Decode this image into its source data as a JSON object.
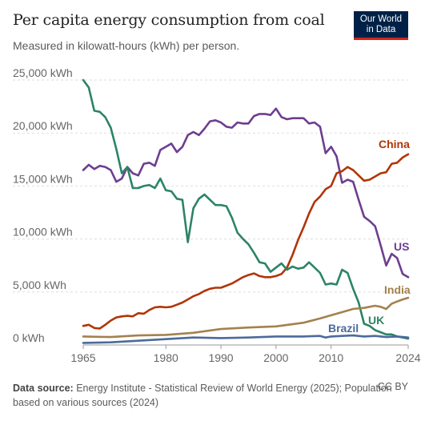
{
  "header": {
    "title": "Per capita energy consumption from coal",
    "subtitle": "Measured in kilowatt-hours (kWh) per person.",
    "logo_line1": "Our World",
    "logo_line2": "in Data"
  },
  "footer": {
    "source_label": "Data source:",
    "source_text": "Energy Institute - Statistical Review of World Energy (2025); Population based on various sources (2024)",
    "license": "CC BY"
  },
  "chart_data": {
    "type": "line",
    "xlim": [
      1965,
      2024
    ],
    "ylim": [
      0,
      25000
    ],
    "x_ticks": [
      1965,
      1980,
      1990,
      2000,
      2010,
      2024
    ],
    "x_tick_labels": [
      "1965",
      "1980",
      "1990",
      "2000",
      "2010",
      "2024"
    ],
    "y_ticks": [
      0,
      5000,
      10000,
      15000,
      20000,
      25000
    ],
    "y_tick_labels": [
      "0 kWh",
      "5,000 kWh",
      "10,000 kWh",
      "15,000 kWh",
      "20,000 kWh",
      "25,000 kWh"
    ],
    "grid": "horizontal-dashed",
    "series": [
      {
        "name": "US",
        "color": "#6d3e91",
        "points": [
          [
            1965,
            16500
          ],
          [
            1966,
            17000
          ],
          [
            1967,
            16600
          ],
          [
            1968,
            16900
          ],
          [
            1969,
            16800
          ],
          [
            1970,
            16500
          ],
          [
            1971,
            15400
          ],
          [
            1972,
            15700
          ],
          [
            1973,
            16800
          ],
          [
            1974,
            16200
          ],
          [
            1975,
            16000
          ],
          [
            1976,
            17100
          ],
          [
            1977,
            17200
          ],
          [
            1978,
            16900
          ],
          [
            1979,
            18400
          ],
          [
            1980,
            18700
          ],
          [
            1981,
            19000
          ],
          [
            1982,
            18200
          ],
          [
            1983,
            18700
          ],
          [
            1984,
            19800
          ],
          [
            1985,
            20100
          ],
          [
            1986,
            19800
          ],
          [
            1987,
            20400
          ],
          [
            1988,
            21100
          ],
          [
            1989,
            21200
          ],
          [
            1990,
            21000
          ],
          [
            1991,
            20600
          ],
          [
            1992,
            20500
          ],
          [
            1993,
            21000
          ],
          [
            1994,
            20900
          ],
          [
            1995,
            20900
          ],
          [
            1996,
            21600
          ],
          [
            1997,
            21800
          ],
          [
            1998,
            21800
          ],
          [
            1999,
            21700
          ],
          [
            2000,
            22300
          ],
          [
            2001,
            21500
          ],
          [
            2002,
            21300
          ],
          [
            2003,
            21400
          ],
          [
            2004,
            21400
          ],
          [
            2005,
            21400
          ],
          [
            2006,
            20900
          ],
          [
            2007,
            21000
          ],
          [
            2008,
            20600
          ],
          [
            2009,
            18100
          ],
          [
            2010,
            18700
          ],
          [
            2011,
            17800
          ],
          [
            2012,
            15300
          ],
          [
            2013,
            15600
          ],
          [
            2014,
            15400
          ],
          [
            2015,
            13700
          ],
          [
            2016,
            12100
          ],
          [
            2017,
            11700
          ],
          [
            2018,
            11200
          ],
          [
            2019,
            9400
          ],
          [
            2020,
            7500
          ],
          [
            2021,
            8600
          ],
          [
            2022,
            8200
          ],
          [
            2023,
            6700
          ],
          [
            2024,
            6400
          ]
        ]
      },
      {
        "name": "China",
        "color": "#b13507",
        "points": [
          [
            1965,
            1800
          ],
          [
            1966,
            1900
          ],
          [
            1967,
            1600
          ],
          [
            1968,
            1550
          ],
          [
            1969,
            1900
          ],
          [
            1970,
            2300
          ],
          [
            1971,
            2600
          ],
          [
            1972,
            2700
          ],
          [
            1973,
            2750
          ],
          [
            1974,
            2700
          ],
          [
            1975,
            3000
          ],
          [
            1976,
            2950
          ],
          [
            1977,
            3300
          ],
          [
            1978,
            3550
          ],
          [
            1979,
            3600
          ],
          [
            1980,
            3550
          ],
          [
            1981,
            3600
          ],
          [
            1982,
            3800
          ],
          [
            1983,
            4000
          ],
          [
            1984,
            4300
          ],
          [
            1985,
            4600
          ],
          [
            1986,
            4800
          ],
          [
            1987,
            5100
          ],
          [
            1988,
            5300
          ],
          [
            1989,
            5400
          ],
          [
            1990,
            5400
          ],
          [
            1991,
            5600
          ],
          [
            1992,
            5800
          ],
          [
            1993,
            6100
          ],
          [
            1994,
            6400
          ],
          [
            1995,
            6600
          ],
          [
            1996,
            6750
          ],
          [
            1997,
            6500
          ],
          [
            1998,
            6400
          ],
          [
            1999,
            6400
          ],
          [
            2000,
            6500
          ],
          [
            2001,
            6700
          ],
          [
            2002,
            7300
          ],
          [
            2003,
            8500
          ],
          [
            2004,
            9900
          ],
          [
            2005,
            11100
          ],
          [
            2006,
            12400
          ],
          [
            2007,
            13500
          ],
          [
            2008,
            14000
          ],
          [
            2009,
            14700
          ],
          [
            2010,
            15000
          ],
          [
            2011,
            16200
          ],
          [
            2012,
            16400
          ],
          [
            2013,
            16800
          ],
          [
            2014,
            16500
          ],
          [
            2015,
            16000
          ],
          [
            2016,
            15500
          ],
          [
            2017,
            15600
          ],
          [
            2018,
            15900
          ],
          [
            2019,
            16200
          ],
          [
            2020,
            16300
          ],
          [
            2021,
            17100
          ],
          [
            2022,
            17200
          ],
          [
            2023,
            17700
          ],
          [
            2024,
            18000
          ]
        ]
      },
      {
        "name": "UK",
        "color": "#2c8465",
        "points": [
          [
            1965,
            25000
          ],
          [
            1966,
            24300
          ],
          [
            1967,
            22100
          ],
          [
            1968,
            22000
          ],
          [
            1969,
            21500
          ],
          [
            1970,
            20500
          ],
          [
            1971,
            18500
          ],
          [
            1972,
            16200
          ],
          [
            1973,
            16800
          ],
          [
            1974,
            14800
          ],
          [
            1975,
            14800
          ],
          [
            1976,
            15000
          ],
          [
            1977,
            15100
          ],
          [
            1978,
            14800
          ],
          [
            1979,
            15700
          ],
          [
            1980,
            14600
          ],
          [
            1981,
            14500
          ],
          [
            1982,
            13800
          ],
          [
            1983,
            13700
          ],
          [
            1984,
            9700
          ],
          [
            1985,
            12900
          ],
          [
            1986,
            13800
          ],
          [
            1987,
            14200
          ],
          [
            1988,
            13700
          ],
          [
            1989,
            13200
          ],
          [
            1990,
            13200
          ],
          [
            1991,
            13100
          ],
          [
            1992,
            12000
          ],
          [
            1993,
            10600
          ],
          [
            1994,
            10000
          ],
          [
            1995,
            9500
          ],
          [
            1996,
            8700
          ],
          [
            1997,
            7800
          ],
          [
            1998,
            7700
          ],
          [
            1999,
            6900
          ],
          [
            2000,
            7300
          ],
          [
            2001,
            7700
          ],
          [
            2002,
            7100
          ],
          [
            2003,
            7400
          ],
          [
            2004,
            7200
          ],
          [
            2005,
            7300
          ],
          [
            2006,
            7800
          ],
          [
            2007,
            7300
          ],
          [
            2008,
            6800
          ],
          [
            2009,
            5700
          ],
          [
            2010,
            5800
          ],
          [
            2011,
            5700
          ],
          [
            2012,
            7100
          ],
          [
            2013,
            6800
          ],
          [
            2014,
            5300
          ],
          [
            2015,
            4000
          ],
          [
            2016,
            2000
          ],
          [
            2017,
            1800
          ],
          [
            2018,
            1400
          ],
          [
            2019,
            1200
          ],
          [
            2020,
            1000
          ],
          [
            2021,
            1000
          ],
          [
            2022,
            800
          ],
          [
            2023,
            700
          ],
          [
            2024,
            600
          ]
        ]
      },
      {
        "name": "India",
        "color": "#a2824e",
        "points": [
          [
            1965,
            800
          ],
          [
            1970,
            750
          ],
          [
            1975,
            900
          ],
          [
            1980,
            950
          ],
          [
            1985,
            1150
          ],
          [
            1990,
            1500
          ],
          [
            1995,
            1650
          ],
          [
            2000,
            1750
          ],
          [
            2005,
            2100
          ],
          [
            2008,
            2500
          ],
          [
            2010,
            2800
          ],
          [
            2012,
            3100
          ],
          [
            2014,
            3400
          ],
          [
            2016,
            3500
          ],
          [
            2018,
            3700
          ],
          [
            2019,
            3600
          ],
          [
            2020,
            3400
          ],
          [
            2021,
            3900
          ],
          [
            2022,
            4100
          ],
          [
            2023,
            4300
          ],
          [
            2024,
            4450
          ]
        ]
      },
      {
        "name": "Brazil",
        "color": "#4c6a9c",
        "points": [
          [
            1965,
            200
          ],
          [
            1970,
            250
          ],
          [
            1975,
            400
          ],
          [
            1980,
            550
          ],
          [
            1985,
            700
          ],
          [
            1990,
            650
          ],
          [
            1995,
            700
          ],
          [
            2000,
            800
          ],
          [
            2005,
            800
          ],
          [
            2008,
            850
          ],
          [
            2009,
            700
          ],
          [
            2010,
            800
          ],
          [
            2012,
            850
          ],
          [
            2014,
            900
          ],
          [
            2016,
            800
          ],
          [
            2018,
            850
          ],
          [
            2020,
            750
          ],
          [
            2022,
            800
          ],
          [
            2024,
            700
          ]
        ]
      }
    ]
  }
}
